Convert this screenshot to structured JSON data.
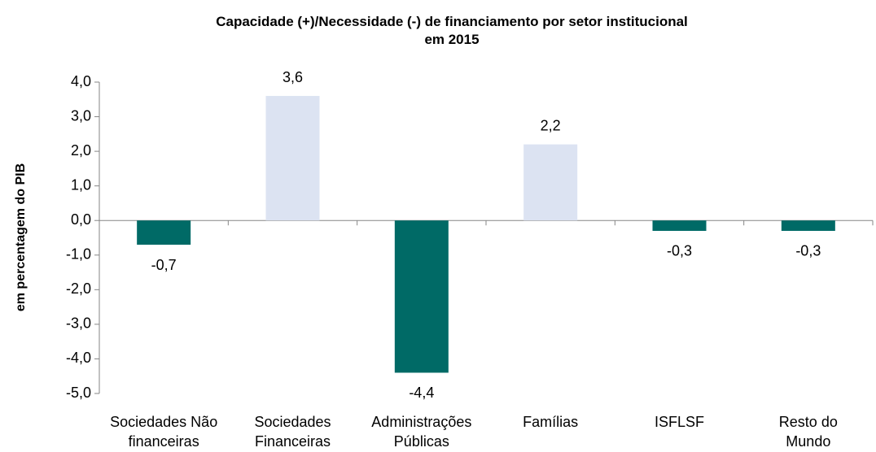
{
  "chart_data": {
    "type": "bar",
    "title": "Capacidade (+)/Necessidade (-) de financiamento por setor institucional\nem 2015",
    "y_label": "em percentagem do PIB",
    "categories": [
      "Sociedades Não\nfinanceiras",
      "Sociedades\nFinanceiras",
      "Administrações\nPúblicas",
      "Famílias",
      "ISFLSF",
      "Resto do\nMundo"
    ],
    "values": [
      -0.7,
      3.6,
      -4.4,
      2.2,
      -0.3,
      -0.3
    ],
    "value_labels": [
      "-0,7",
      "3,6",
      "-4,4",
      "2,2",
      "-0,3",
      "-0,3"
    ],
    "colors": [
      "#006a66",
      "#dce3f2",
      "#006a66",
      "#dce3f2",
      "#006a66",
      "#006a66"
    ],
    "ylim": [
      -5.0,
      4.0
    ],
    "yticks": [
      {
        "value": 4.0,
        "label": "4,0"
      },
      {
        "value": 3.0,
        "label": "3,0"
      },
      {
        "value": 2.0,
        "label": "2,0"
      },
      {
        "value": 1.0,
        "label": "1,0"
      },
      {
        "value": 0.0,
        "label": "0,0"
      },
      {
        "value": -1.0,
        "label": "-1,0"
      },
      {
        "value": -2.0,
        "label": "-2,0"
      },
      {
        "value": -3.0,
        "label": "-3,0"
      },
      {
        "value": -4.0,
        "label": "-4,0"
      },
      {
        "value": -5.0,
        "label": "-5,0"
      }
    ],
    "grid": false
  }
}
